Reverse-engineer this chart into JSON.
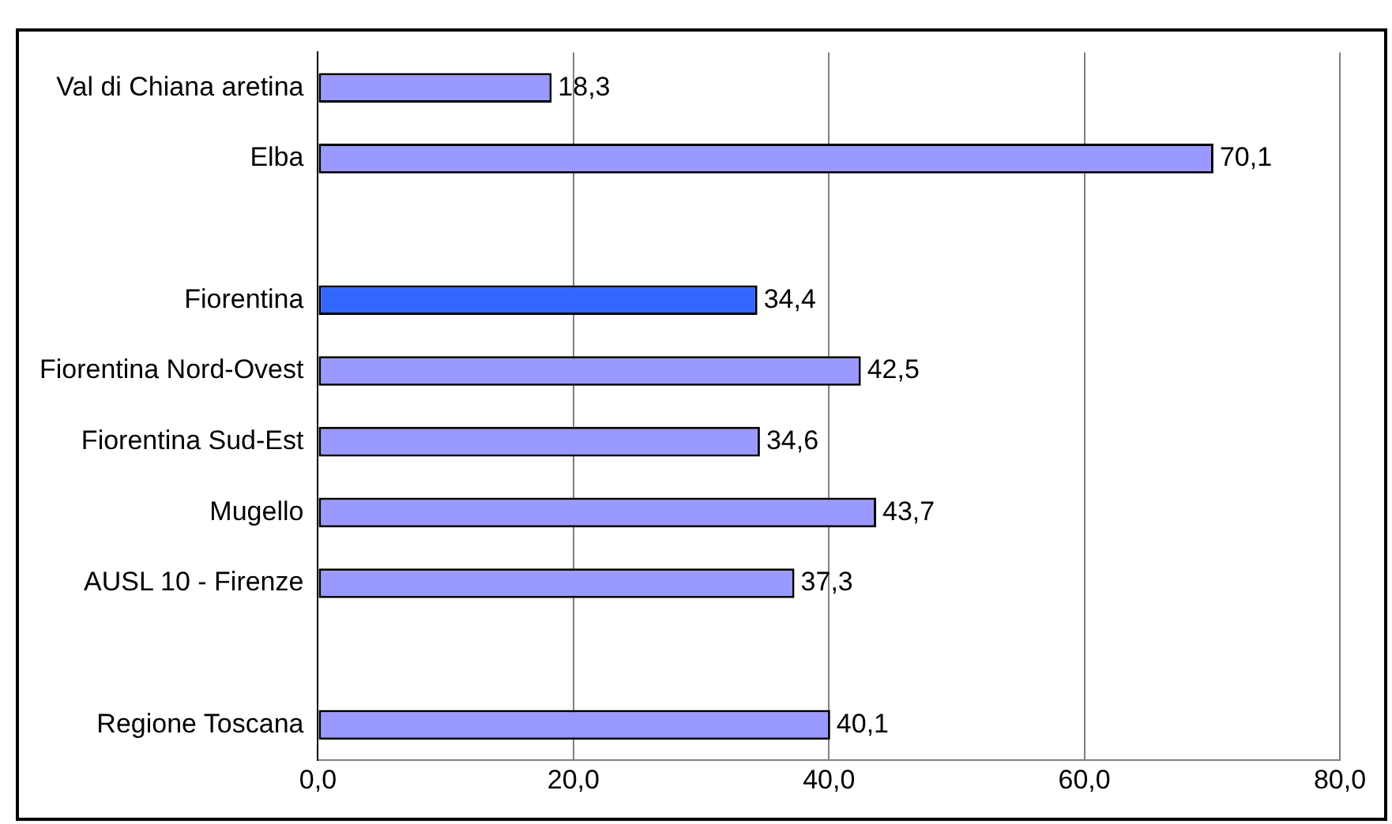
{
  "chart_data": {
    "type": "bar",
    "orientation": "horizontal",
    "categories": [
      "Val di Chiana aretina",
      "Elba",
      null,
      "Fiorentina",
      "Fiorentina Nord-Ovest",
      "Fiorentina Sud-Est",
      "Mugello",
      "AUSL 10 - Firenze",
      null,
      "Regione Toscana"
    ],
    "values": [
      18.3,
      70.1,
      null,
      34.4,
      42.5,
      34.6,
      43.7,
      37.3,
      null,
      40.1
    ],
    "value_labels": [
      "18,3",
      "70,1",
      null,
      "34,4",
      "42,5",
      "34,6",
      "43,7",
      "37,3",
      null,
      "40,1"
    ],
    "colors": [
      "#9999ff",
      "#9999ff",
      "#9999ff",
      "#3366ff",
      "#9999ff",
      "#9999ff",
      "#9999ff",
      "#9999ff",
      "#9999ff",
      "#9999ff"
    ],
    "xlim": [
      0,
      80
    ],
    "xticks": [
      {
        "value": 0,
        "label": "0,0"
      },
      {
        "value": 20,
        "label": "20,0"
      },
      {
        "value": 40,
        "label": "40,0"
      },
      {
        "value": 60,
        "label": "60,0"
      },
      {
        "value": 80,
        "label": "80,0"
      }
    ],
    "grid": "x",
    "legend": false
  }
}
